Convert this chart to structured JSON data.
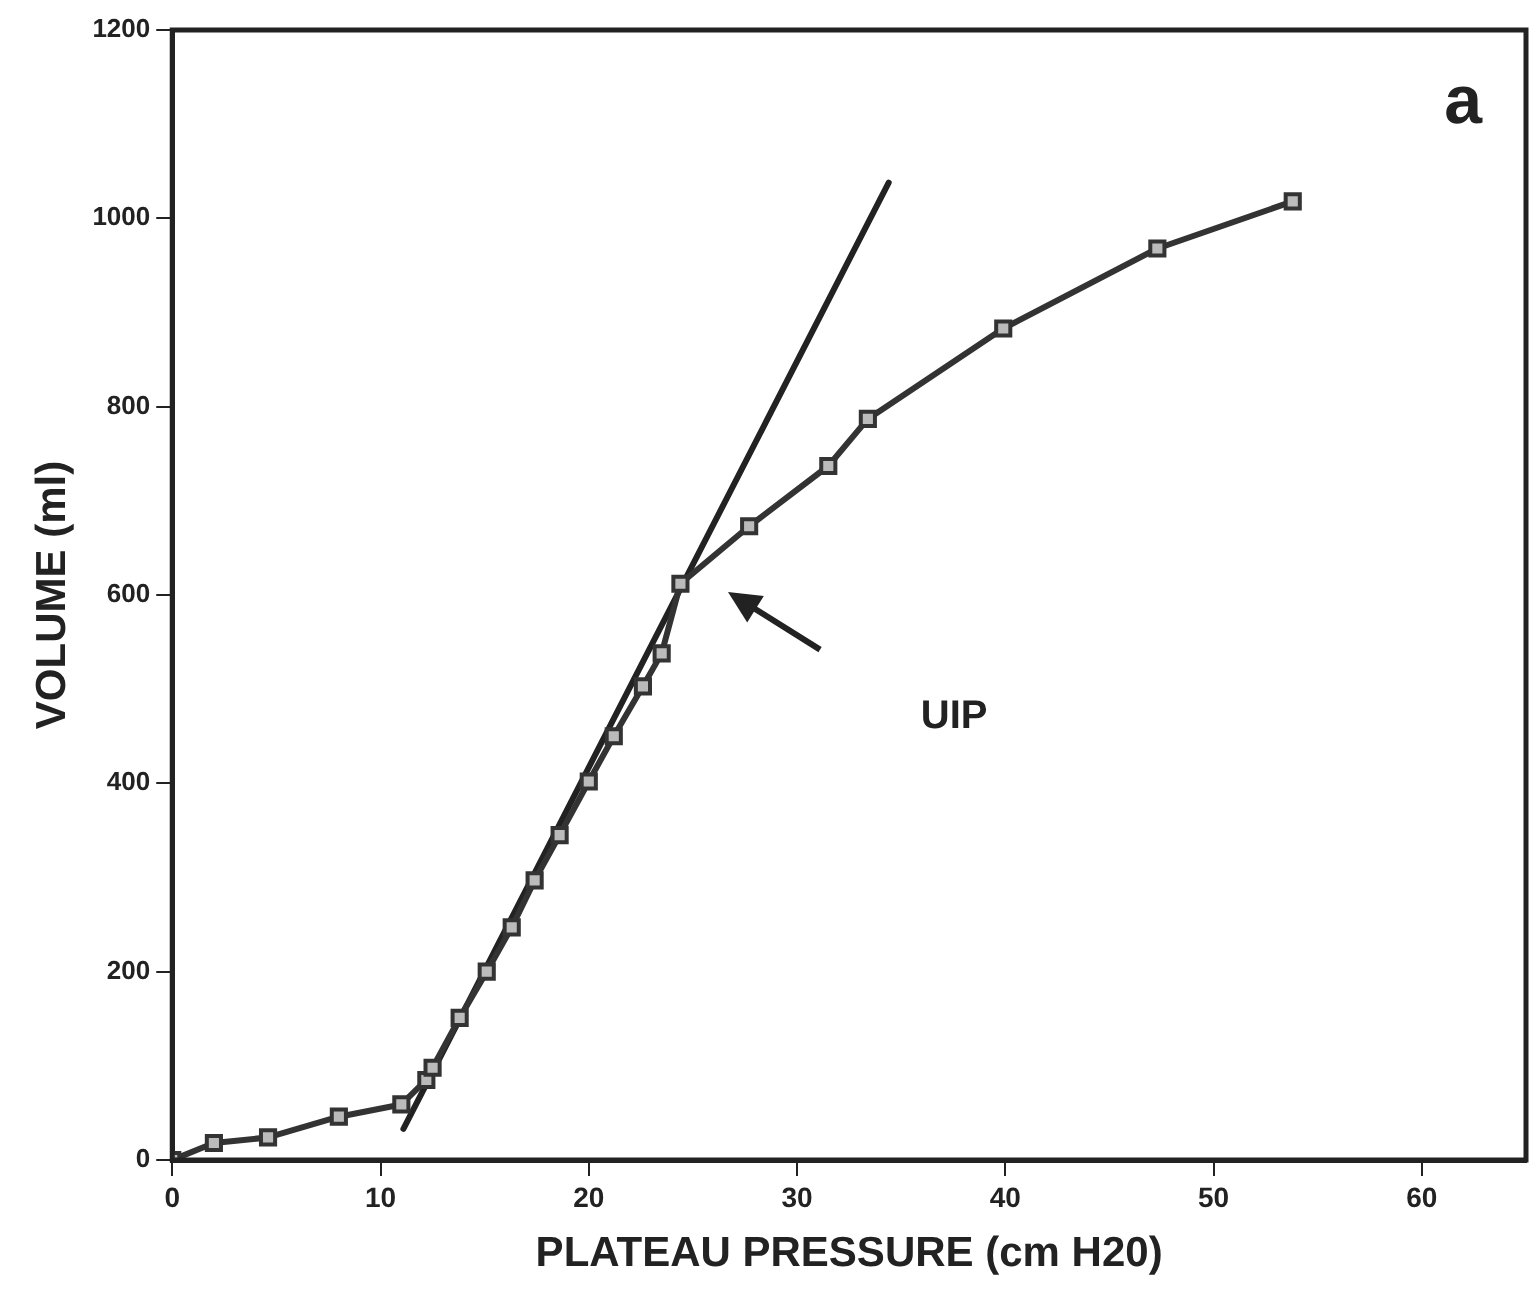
{
  "chart_data": {
    "type": "line",
    "xlabel": "PLATEAU PRESSURE (cm H20)",
    "ylabel": "VOLUME (ml)",
    "xlim": [
      0,
      65
    ],
    "xticks": [
      0,
      10,
      20,
      30,
      40,
      50,
      60
    ],
    "ylim": [
      0,
      1200
    ],
    "yticks": [
      0,
      200,
      400,
      600,
      800,
      1000,
      1200
    ],
    "grid": false,
    "legend": false,
    "marker": "square",
    "line_style": "solid",
    "annotations": [
      "a",
      "UIP"
    ],
    "series": [
      {
        "color": "#333333",
        "x": [
          0,
          2,
          4.6,
          8,
          11,
          12.2,
          12.5,
          13.8,
          15.1,
          16.3,
          17.4,
          18.6,
          20,
          21.2,
          22.6,
          23.5,
          24.4,
          27.7,
          31.5,
          33.4,
          39.9,
          47.3,
          53.8
        ],
        "values": [
          0,
          18,
          24,
          46,
          59,
          85,
          98,
          151,
          200,
          247,
          297,
          345,
          402,
          450,
          503,
          538,
          612,
          673,
          737,
          787,
          883,
          968,
          1018
        ]
      },
      {
        "type": "line",
        "marker": "none",
        "color": "#222222",
        "x": [
          11.1,
          34.4
        ],
        "values": [
          33,
          1038
        ]
      }
    ]
  }
}
